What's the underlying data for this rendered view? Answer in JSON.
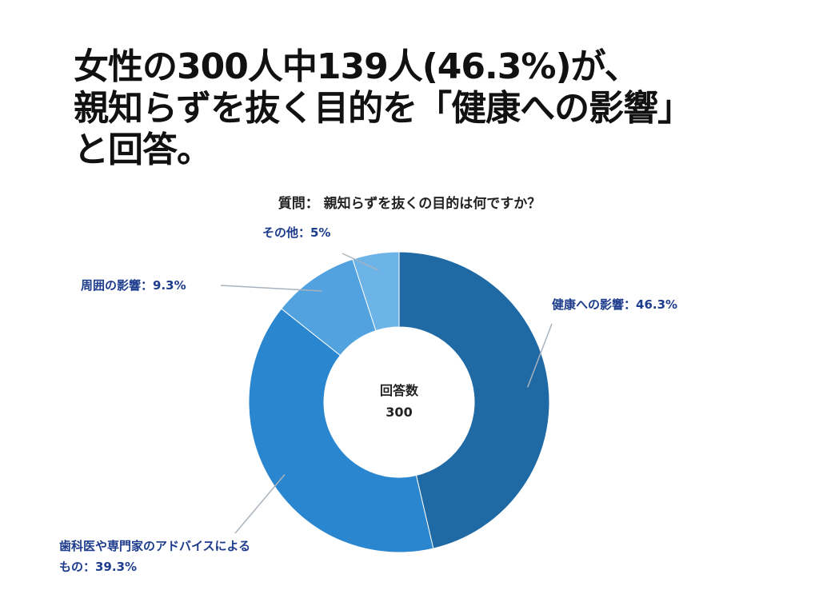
{
  "headline": {
    "line1": "女性の300人中139人(46.3%)が、",
    "line2": "親知らずを抜く目的を「健康への影響」",
    "line3": "と回答。"
  },
  "question": "質問： 親知らずを抜くの目的は何ですか？",
  "center": {
    "label": "回答数",
    "value": "300"
  },
  "chart_data": {
    "type": "pie",
    "donut": true,
    "title": "質問： 親知らずを抜くの目的は何ですか？",
    "total_label": "回答数",
    "total": 300,
    "slices": [
      {
        "label": "健康への影響：46.3%",
        "name": "健康への影響",
        "value": 46.3,
        "color": "#1f6aa5"
      },
      {
        "label": "歯科医や専門家のアドバイスによるもの：39.3%",
        "name": "歯科医や専門家のアドバイスによるもの",
        "value": 39.3,
        "color": "#2a86cf"
      },
      {
        "label": "周囲の影響：9.3%",
        "name": "周囲の影響",
        "value": 9.3,
        "color": "#51a2df"
      },
      {
        "label": "その他：5%",
        "name": "その他",
        "value": 5,
        "color": "#6cb3e8"
      }
    ],
    "label_lines": [
      [
        "健康への影響：46.3%"
      ],
      [
        "歯科医や専門家のアドバイスによる",
        "もの：39.3%"
      ],
      [
        "周囲の影響：9.3%"
      ],
      [
        "その他：5%"
      ]
    ]
  }
}
